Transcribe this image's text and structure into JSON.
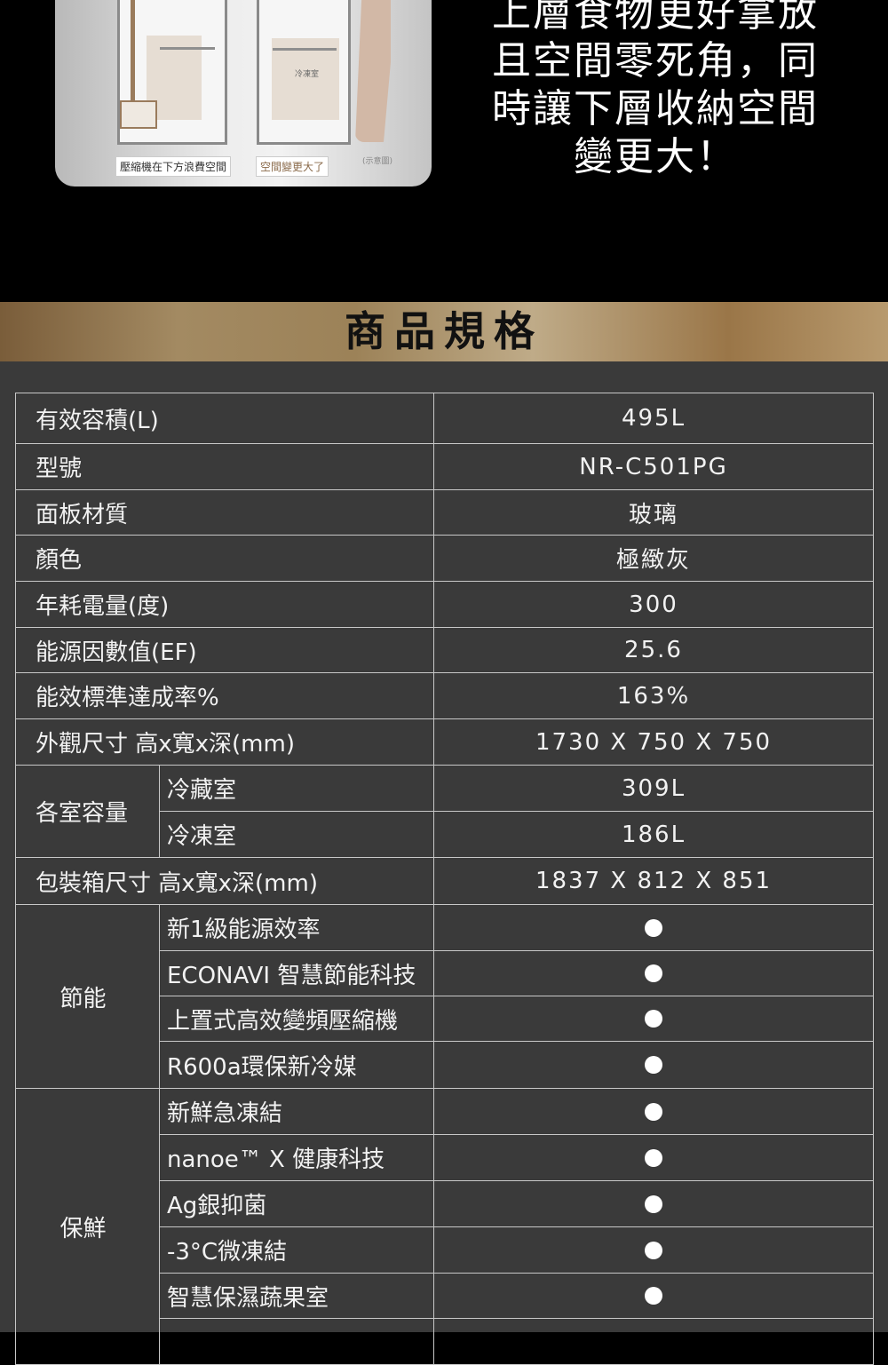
{
  "illustration": {
    "freezer_label": "冷凍室",
    "caption_left": "壓縮機在下方浪費空間",
    "caption_right": "空間變更大了",
    "note": "(示意圖)"
  },
  "promo_lines": [
    "上層食物更好拿放",
    "且空間零死角，同",
    "時讓下層收納空間",
    "變更大！"
  ],
  "section_title": "商品規格",
  "colors": {
    "background": "#000000",
    "table_bg": "#3a3a3a",
    "band_gold": "#a38a62",
    "text": "#f2f2f2"
  },
  "specs": {
    "rows": [
      {
        "label": "有效容積(L)",
        "value": "495L"
      },
      {
        "label": "型號",
        "value": "NR-C501PG"
      },
      {
        "label": "面板材質",
        "value": "玻璃"
      },
      {
        "label": "顏色",
        "value": "極緻灰"
      },
      {
        "label": "年耗電量(度)",
        "value": "300"
      },
      {
        "label": "能源因數值(EF)",
        "value": "25.6"
      },
      {
        "label": "能效標準達成率%",
        "value": "163%"
      },
      {
        "label": "外觀尺寸 高x寬x深(mm)",
        "value": "1730 X 750 X 750"
      }
    ],
    "capacity": {
      "label": "各室容量",
      "items": [
        {
          "label": "冷藏室",
          "value": "309L"
        },
        {
          "label": "冷凍室",
          "value": "186L"
        }
      ]
    },
    "package": {
      "label": "包裝箱尺寸 高x寬x深(mm)",
      "value": "1837 X 812 X 851"
    },
    "energy": {
      "label": "節能",
      "items": [
        "新1級能源效率",
        "ECONAVI 智慧節能科技",
        "上置式高效變頻壓縮機",
        "R600a環保新冷媒"
      ]
    },
    "fresh": {
      "label": "保鮮",
      "items": [
        "新鮮急凍結",
        "nanoe™ X 健康科技",
        "Ag銀抑菌",
        "-3°C微凍結",
        "智慧保濕蔬果室",
        ""
      ]
    },
    "dot_icon": "filled-circle"
  }
}
